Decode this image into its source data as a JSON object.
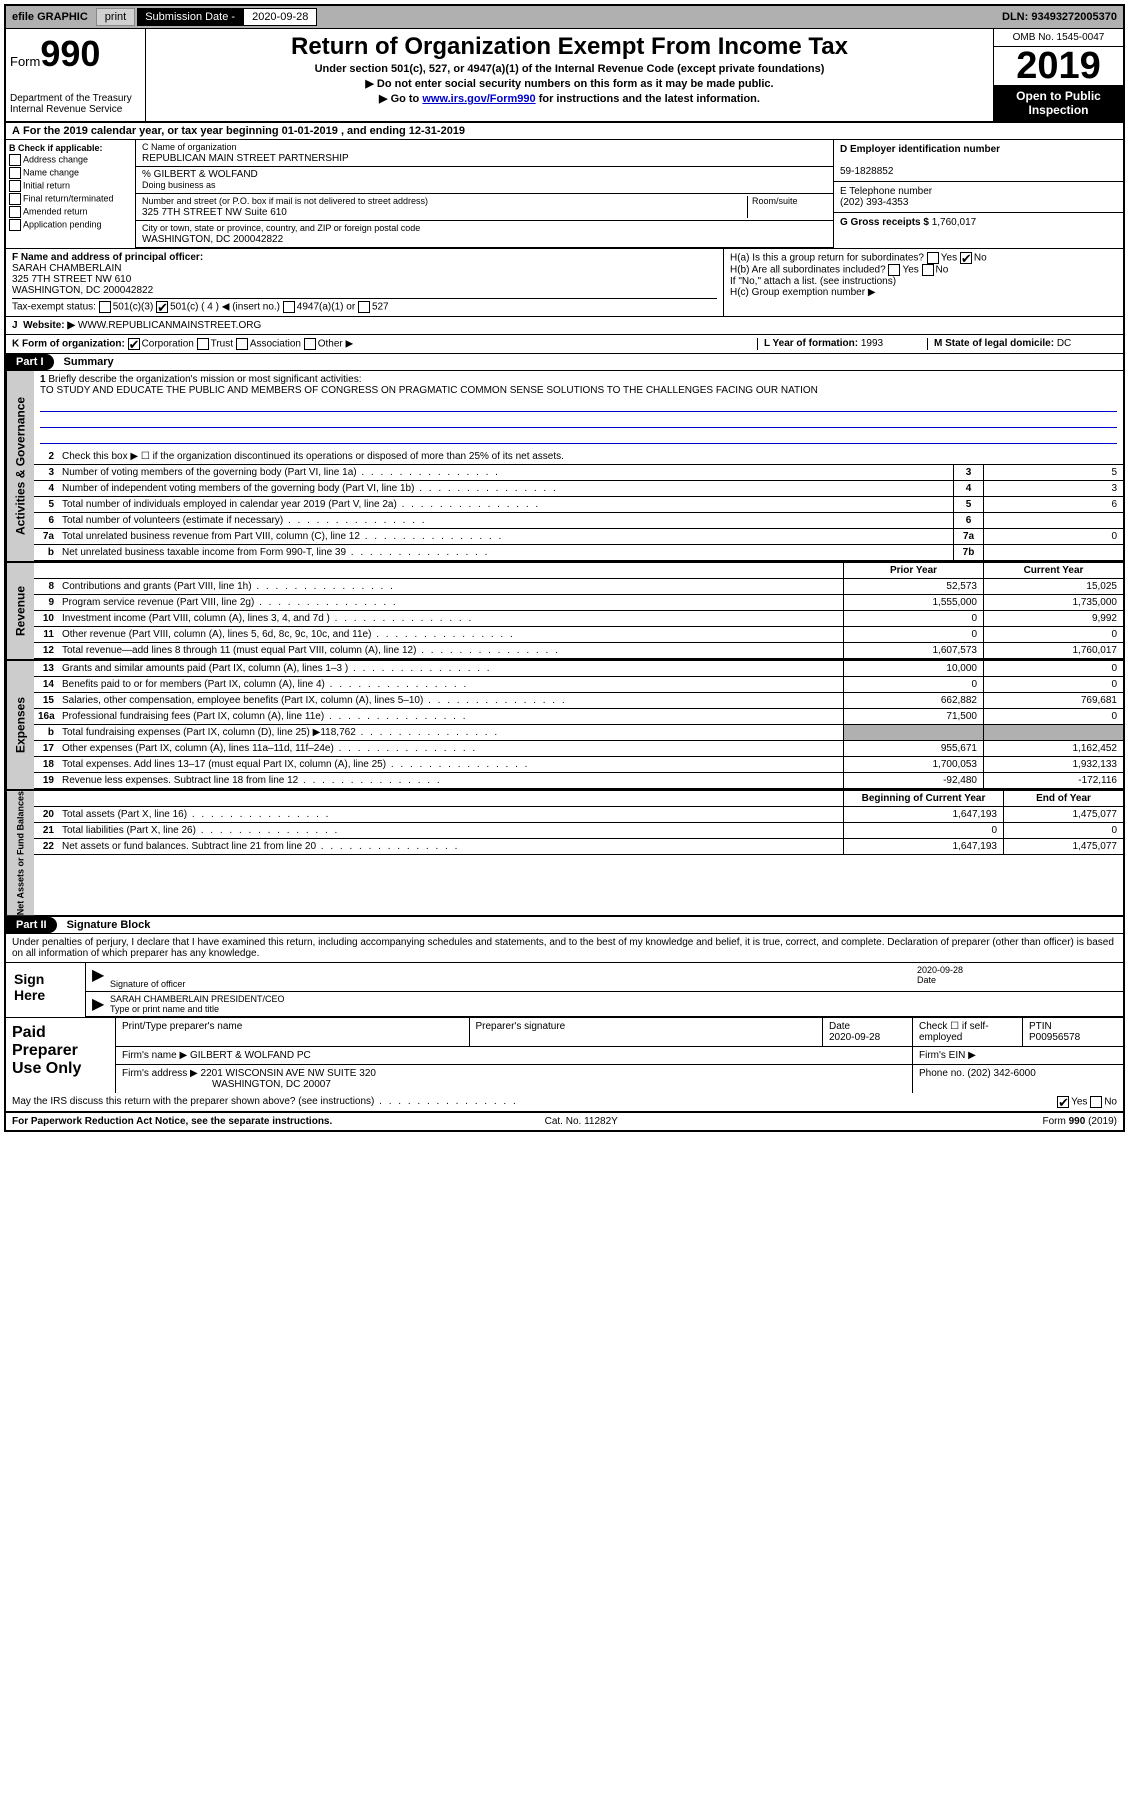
{
  "topbar": {
    "efile": "efile GRAPHIC",
    "print": "print",
    "subLabel": "Submission Date -",
    "subDate": "2020-09-28",
    "dln": "DLN: 93493272005370"
  },
  "hdr": {
    "form": "Form",
    "num": "990",
    "dept": "Department of the Treasury",
    "irs": "Internal Revenue Service",
    "title": "Return of Organization Exempt From Income Tax",
    "sub1": "Under section 501(c), 527, or 4947(a)(1) of the Internal Revenue Code (except private foundations)",
    "sub2": "Do not enter social security numbers on this form as it may be made public.",
    "sub3a": "Go to ",
    "sub3link": "www.irs.gov/Form990",
    "sub3b": " for instructions and the latest information.",
    "omb": "OMB No. 1545-0047",
    "year": "2019",
    "pub": "Open to Public Inspection"
  },
  "A": {
    "text": "For the 2019 calendar year, or tax year beginning 01-01-2019   , and ending 12-31-2019"
  },
  "B": {
    "label": "B Check if applicable:",
    "items": [
      "Address change",
      "Name change",
      "Initial return",
      "Final return/terminated",
      "Amended return",
      "Application pending"
    ]
  },
  "C": {
    "nameLbl": "C Name of organization",
    "name": "REPUBLICAN MAIN STREET PARTNERSHIP",
    "pctLbl": "% GILBERT & WOLFAND",
    "dba": "Doing business as",
    "addrLbl": "Number and street (or P.O. box if mail is not delivered to street address)",
    "room": "Room/suite",
    "addr": "325 7TH STREET NW Suite 610",
    "cityLbl": "City or town, state or province, country, and ZIP or foreign postal code",
    "city": "WASHINGTON, DC  200042822"
  },
  "D": {
    "lbl": "D Employer identification number",
    "val": "59-1828852"
  },
  "E": {
    "lbl": "E Telephone number",
    "val": "(202) 393-4353"
  },
  "G": {
    "lbl": "G Gross receipts $",
    "val": "1,760,017"
  },
  "F": {
    "lbl": "F  Name and address of principal officer:",
    "name": "SARAH CHAMBERLAIN",
    "addr1": "325 7TH STREET NW 610",
    "addr2": "WASHINGTON, DC  200042822"
  },
  "H": {
    "a": "H(a)  Is this a group return for subordinates?",
    "aYes": "Yes",
    "aNo": "No",
    "b": "H(b)  Are all subordinates included?",
    "bYes": "Yes",
    "bNo": "No",
    "bNote": "If \"No,\" attach a list. (see instructions)",
    "c": "H(c)  Group exemption number ▶"
  },
  "tax": {
    "lbl": "Tax-exempt status:",
    "o1": "501(c)(3)",
    "o2": "501(c) ( 4 ) ◀ (insert no.)",
    "o3": "4947(a)(1) or",
    "o4": "527"
  },
  "J": {
    "lbl": "Website: ▶",
    "val": "WWW.REPUBLICANMAINSTREET.ORG"
  },
  "K": {
    "lbl": "K Form of organization:",
    "o1": "Corporation",
    "o2": "Trust",
    "o3": "Association",
    "o4": "Other ▶"
  },
  "L": {
    "lbl": "L Year of formation:",
    "val": "1993"
  },
  "M": {
    "lbl": "M State of legal domicile:",
    "val": "DC"
  },
  "part1": {
    "hdr": "Part I",
    "title": "Summary"
  },
  "mission": {
    "n": "1",
    "lbl": "Briefly describe the organization's mission or most significant activities:",
    "text": "TO STUDY AND EDUCATE THE PUBLIC AND MEMBERS OF CONGRESS ON PRAGMATIC COMMON SENSE SOLUTIONS TO THE CHALLENGES FACING OUR NATION"
  },
  "gov": {
    "tab": "Activities & Governance",
    "l2": "Check this box ▶ ☐  if the organization discontinued its operations or disposed of more than 25% of its net assets.",
    "rows": [
      {
        "n": "3",
        "t": "Number of voting members of the governing body (Part VI, line 1a)",
        "b": "3",
        "v": "5"
      },
      {
        "n": "4",
        "t": "Number of independent voting members of the governing body (Part VI, line 1b)",
        "b": "4",
        "v": "3"
      },
      {
        "n": "5",
        "t": "Total number of individuals employed in calendar year 2019 (Part V, line 2a)",
        "b": "5",
        "v": "6"
      },
      {
        "n": "6",
        "t": "Total number of volunteers (estimate if necessary)",
        "b": "6",
        "v": ""
      },
      {
        "n": "7a",
        "t": "Total unrelated business revenue from Part VIII, column (C), line 12",
        "b": "7a",
        "v": "0"
      },
      {
        "n": "b",
        "t": "Net unrelated business taxable income from Form 990-T, line 39",
        "b": "7b",
        "v": ""
      }
    ]
  },
  "rev": {
    "tab": "Revenue",
    "py": "Prior Year",
    "cy": "Current Year",
    "rows": [
      {
        "n": "8",
        "t": "Contributions and grants (Part VIII, line 1h)",
        "v1": "52,573",
        "v2": "15,025"
      },
      {
        "n": "9",
        "t": "Program service revenue (Part VIII, line 2g)",
        "v1": "1,555,000",
        "v2": "1,735,000"
      },
      {
        "n": "10",
        "t": "Investment income (Part VIII, column (A), lines 3, 4, and 7d )",
        "v1": "0",
        "v2": "9,992"
      },
      {
        "n": "11",
        "t": "Other revenue (Part VIII, column (A), lines 5, 6d, 8c, 9c, 10c, and 11e)",
        "v1": "0",
        "v2": "0"
      },
      {
        "n": "12",
        "t": "Total revenue—add lines 8 through 11 (must equal Part VIII, column (A), line 12)",
        "v1": "1,607,573",
        "v2": "1,760,017"
      }
    ]
  },
  "exp": {
    "tab": "Expenses",
    "rows": [
      {
        "n": "13",
        "t": "Grants and similar amounts paid (Part IX, column (A), lines 1–3 )",
        "v1": "10,000",
        "v2": "0"
      },
      {
        "n": "14",
        "t": "Benefits paid to or for members (Part IX, column (A), line 4)",
        "v1": "0",
        "v2": "0"
      },
      {
        "n": "15",
        "t": "Salaries, other compensation, employee benefits (Part IX, column (A), lines 5–10)",
        "v1": "662,882",
        "v2": "769,681"
      },
      {
        "n": "16a",
        "t": "Professional fundraising fees (Part IX, column (A), line 11e)",
        "v1": "71,500",
        "v2": "0"
      },
      {
        "n": "b",
        "t": "Total fundraising expenses (Part IX, column (D), line 25) ▶118,762",
        "v1": "",
        "v2": "",
        "gray": true
      },
      {
        "n": "17",
        "t": "Other expenses (Part IX, column (A), lines 11a–11d, 11f–24e)",
        "v1": "955,671",
        "v2": "1,162,452"
      },
      {
        "n": "18",
        "t": "Total expenses. Add lines 13–17 (must equal Part IX, column (A), line 25)",
        "v1": "1,700,053",
        "v2": "1,932,133"
      },
      {
        "n": "19",
        "t": "Revenue less expenses. Subtract line 18 from line 12",
        "v1": "-92,480",
        "v2": "-172,116"
      }
    ]
  },
  "net": {
    "tab": "Net Assets or Fund Balances",
    "bcy": "Beginning of Current Year",
    "eoy": "End of Year",
    "rows": [
      {
        "n": "20",
        "t": "Total assets (Part X, line 16)",
        "v1": "1,647,193",
        "v2": "1,475,077"
      },
      {
        "n": "21",
        "t": "Total liabilities (Part X, line 26)",
        "v1": "0",
        "v2": "0"
      },
      {
        "n": "22",
        "t": "Net assets or fund balances. Subtract line 21 from line 20",
        "v1": "1,647,193",
        "v2": "1,475,077"
      }
    ]
  },
  "part2": {
    "hdr": "Part II",
    "title": "Signature Block"
  },
  "decl": "Under penalties of perjury, I declare that I have examined this return, including accompanying schedules and statements, and to the best of my knowledge and belief, it is true, correct, and complete. Declaration of preparer (other than officer) is based on all information of which preparer has any knowledge.",
  "sign": {
    "lbl": "Sign Here",
    "sigOff": "Signature of officer",
    "date": "2020-09-28",
    "dateLbl": "Date",
    "name": "SARAH CHAMBERLAIN  PRESIDENT/CEO",
    "nameLbl": "Type or print name and title"
  },
  "paid": {
    "lbl": "Paid Preparer Use Only",
    "h1": "Print/Type preparer's name",
    "h2": "Preparer's signature",
    "h3": "Date",
    "h3v": "2020-09-28",
    "h4": "Check ☐ if self-employed",
    "h5": "PTIN",
    "h5v": "P00956578",
    "firmLbl": "Firm's name   ▶",
    "firm": "GILBERT & WOLFAND PC",
    "einLbl": "Firm's EIN ▶",
    "addrLbl": "Firm's address ▶",
    "addr1": "2201 WISCONSIN AVE NW SUITE 320",
    "addr2": "WASHINGTON, DC  20007",
    "phoneLbl": "Phone no.",
    "phone": "(202) 342-6000"
  },
  "discuss": {
    "t": "May the IRS discuss this return with the preparer shown above? (see instructions)",
    "yes": "Yes",
    "no": "No"
  },
  "foot": {
    "l": "For Paperwork Reduction Act Notice, see the separate instructions.",
    "c": "Cat. No. 11282Y",
    "r": "Form 990 (2019)"
  }
}
